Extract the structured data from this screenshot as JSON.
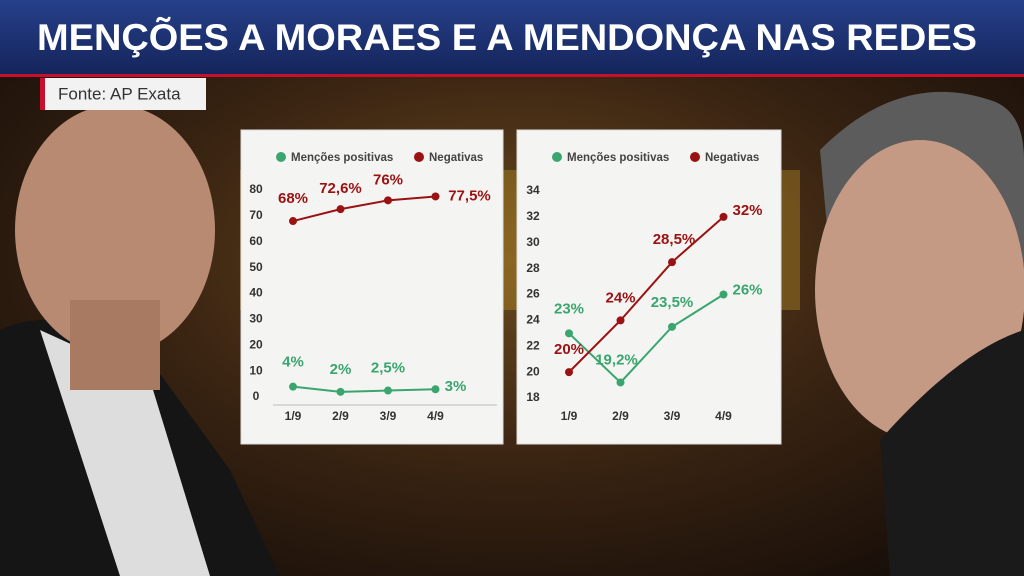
{
  "header": {
    "title": "MENÇÕES A MORAES E A MENDONÇA NAS REDES",
    "source": "Fonte: AP Exata"
  },
  "chart_data": [
    {
      "type": "line",
      "categories": [
        "1/9",
        "2/9",
        "3/9",
        "4/9"
      ],
      "ylim": [
        0,
        80
      ],
      "yticks": [
        0,
        10,
        20,
        30,
        40,
        50,
        60,
        70,
        80
      ],
      "series": [
        {
          "name": "Menções positivas",
          "color": "#3aa56f",
          "values": [
            4,
            2,
            2.5,
            3
          ],
          "value_labels": [
            "4%",
            "2%",
            "2,5%",
            "3%"
          ]
        },
        {
          "name": "Negativas",
          "color": "#9a1212",
          "values": [
            68,
            72.6,
            76,
            77.5
          ],
          "value_labels": [
            "68%",
            "72,6%",
            "76%",
            "77,5%"
          ]
        }
      ]
    },
    {
      "type": "line",
      "categories": [
        "1/9",
        "2/9",
        "3/9",
        "4/9"
      ],
      "ylim": [
        18,
        34
      ],
      "yticks": [
        18,
        20,
        22,
        24,
        26,
        28,
        30,
        32,
        34
      ],
      "series": [
        {
          "name": "Menções positivas",
          "color": "#3aa56f",
          "values": [
            23,
            19.2,
            23.5,
            26
          ],
          "value_labels": [
            "23%",
            "19,2%",
            "23,5%",
            "26%"
          ]
        },
        {
          "name": "Negativas",
          "color": "#9a1212",
          "values": [
            20,
            24,
            28.5,
            32
          ],
          "value_labels": [
            "20%",
            "24%",
            "28,5%",
            "32%"
          ]
        }
      ]
    }
  ]
}
